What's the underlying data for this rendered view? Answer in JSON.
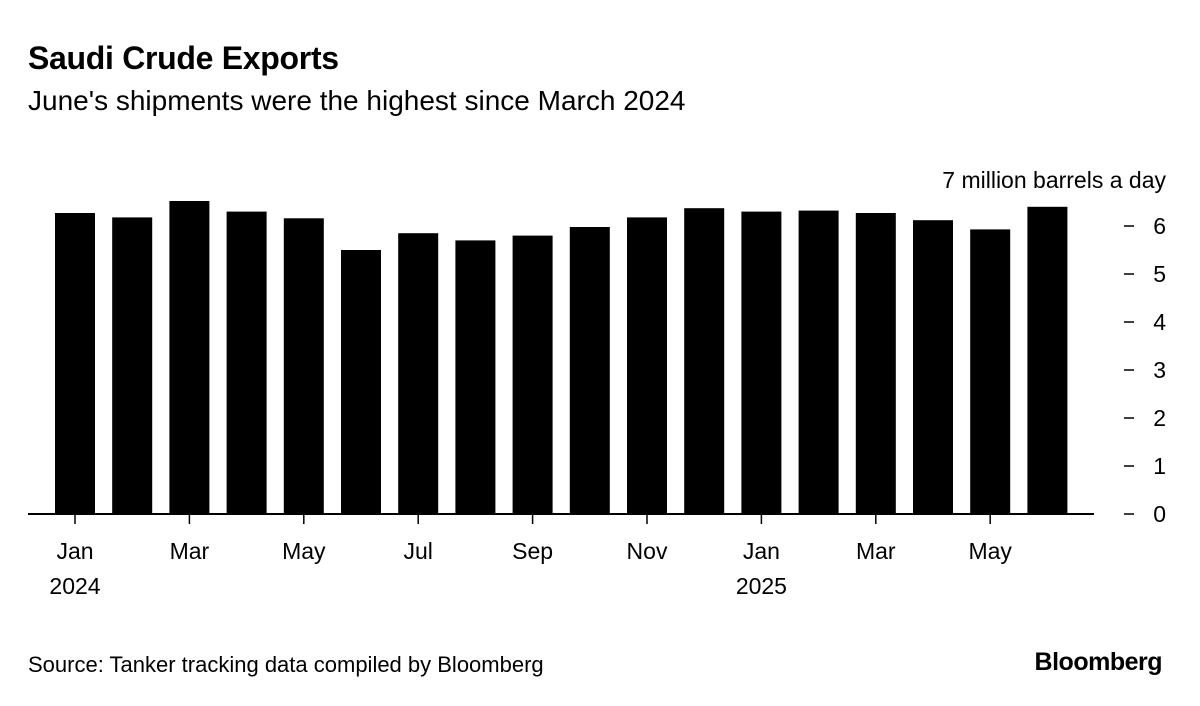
{
  "title": "Saudi Crude Exports",
  "subtitle": "June's shipments were the highest since March 2024",
  "source": "Source: Tanker tracking data compiled by Bloomberg",
  "brand": "Bloomberg",
  "chart_data": {
    "type": "bar",
    "unit_label": "7 million barrels a day",
    "categories": [
      "Jan 2024",
      "Feb 2024",
      "Mar 2024",
      "Apr 2024",
      "May 2024",
      "Jun 2024",
      "Jul 2024",
      "Aug 2024",
      "Sep 2024",
      "Oct 2024",
      "Nov 2024",
      "Dec 2024",
      "Jan 2025",
      "Feb 2025",
      "Mar 2025",
      "Apr 2025",
      "May 2025",
      "Jun 2025"
    ],
    "values": [
      6.27,
      6.18,
      6.52,
      6.3,
      6.16,
      5.5,
      5.85,
      5.7,
      5.8,
      5.98,
      6.18,
      6.37,
      6.3,
      6.32,
      6.27,
      6.12,
      5.93,
      6.4
    ],
    "ylim": [
      0,
      7
    ],
    "y_ticks": [
      0,
      1,
      2,
      3,
      4,
      5,
      6
    ],
    "x_tick_labels": [
      {
        "index": 0,
        "month": "Jan",
        "year": "2024"
      },
      {
        "index": 2,
        "month": "Mar",
        "year": ""
      },
      {
        "index": 4,
        "month": "May",
        "year": ""
      },
      {
        "index": 6,
        "month": "Jul",
        "year": ""
      },
      {
        "index": 8,
        "month": "Sep",
        "year": ""
      },
      {
        "index": 10,
        "month": "Nov",
        "year": ""
      },
      {
        "index": 12,
        "month": "Jan",
        "year": "2025"
      },
      {
        "index": 14,
        "month": "Mar",
        "year": ""
      },
      {
        "index": 16,
        "month": "May",
        "year": ""
      }
    ],
    "y_axis_position": "right",
    "grid": false,
    "bar_color": "#000000"
  }
}
